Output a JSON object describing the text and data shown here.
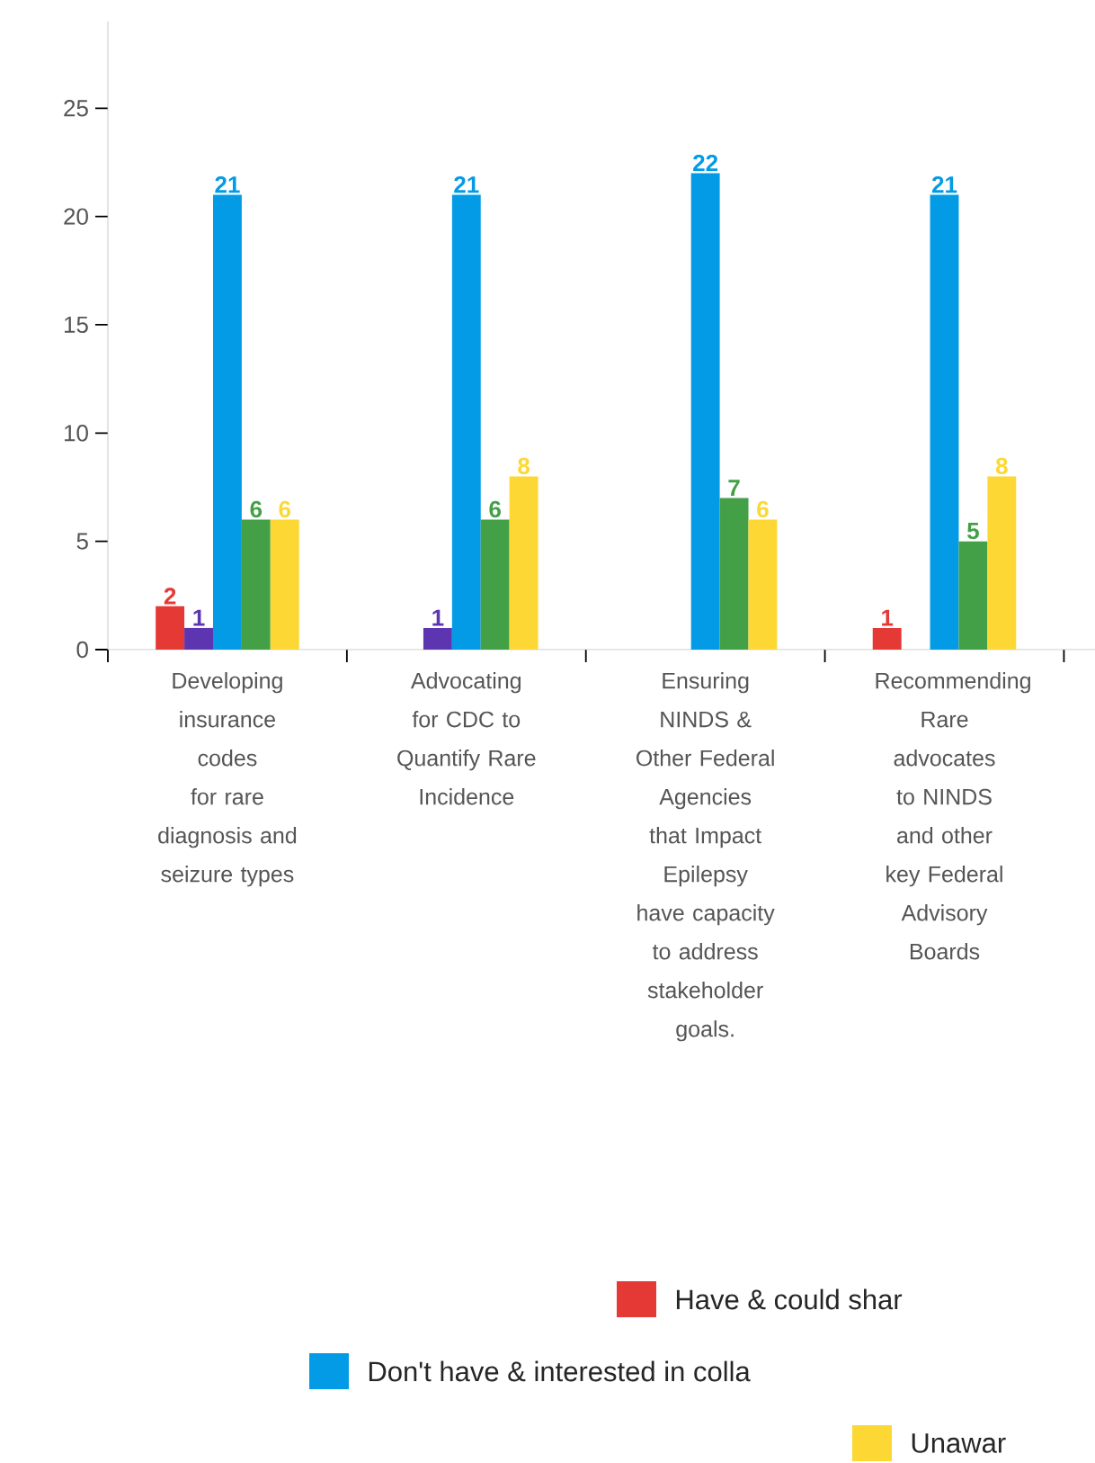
{
  "chart_data": {
    "type": "bar",
    "categories": [
      "Developing insurance codes for rare diagnosis and seizure types",
      "Advocating for CDC to Quantify Rare Incidence",
      "Ensuring NINDS & Other Federal Agencies that Impact Epilepsy have capacity to address stakeholder goals.",
      "Recommending Rare advocates to NINDS and other key Federal Advisory Boards"
    ],
    "series": [
      {
        "name": "Have & could shar",
        "color": "#e53935",
        "values": [
          2,
          null,
          null,
          1
        ]
      },
      {
        "color": "#5e35b1",
        "values": [
          1,
          1,
          null,
          null
        ]
      },
      {
        "name": "Don't have & interested in colla",
        "color": "#039be5",
        "values": [
          21,
          21,
          22,
          21
        ]
      },
      {
        "color": "#43a047",
        "values": [
          6,
          6,
          7,
          5
        ]
      },
      {
        "name": "Unawar",
        "color": "#fdd835",
        "values": [
          6,
          8,
          6,
          8
        ]
      }
    ],
    "ylim": [
      0,
      29
    ],
    "yticks": [
      0,
      5,
      10,
      15,
      20,
      25
    ],
    "data_labels": true,
    "grid": false,
    "legend": "bottom"
  }
}
